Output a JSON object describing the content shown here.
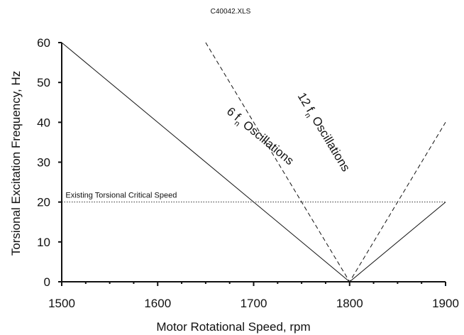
{
  "chart_data": {
    "type": "line",
    "title": "C40042.XLS",
    "xlabel": "Motor Rotational Speed, rpm",
    "ylabel": "Torsional Excitation Frequency, Hz",
    "xlim": [
      1500,
      1900
    ],
    "ylim": [
      0,
      60
    ],
    "xticks": [
      "1500",
      "1600",
      "1700",
      "1800",
      "1900"
    ],
    "yticks": [
      "0",
      "10",
      "20",
      "30",
      "40",
      "50",
      "60"
    ],
    "grid": false,
    "series": [
      {
        "name": "6 fn Oscillations",
        "style": "solid",
        "color": "#111111",
        "x": [
          1500,
          1800,
          1900
        ],
        "y": [
          60,
          0,
          20
        ]
      },
      {
        "name": "12 fn Oscillations",
        "style": "dashed",
        "color": "#111111",
        "x": [
          1650,
          1800,
          1900
        ],
        "y": [
          60,
          0,
          40
        ]
      },
      {
        "name": "Existing Torsional Critical Speed",
        "style": "dotted",
        "color": "#111111",
        "x": [
          1500,
          1900
        ],
        "y": [
          20,
          20
        ]
      }
    ],
    "annotations": [
      {
        "text_main": "6 f",
        "text_sub": "n",
        "text_tail": " Oscillations",
        "x": 1680,
        "y": 41
      },
      {
        "text_main": "12 f",
        "text_sub": "n",
        "text_tail": " Oscillations",
        "x": 1770,
        "y": 44
      },
      {
        "text": "Existing Torsional Critical Speed",
        "x": 1504,
        "y": 22
      }
    ]
  }
}
